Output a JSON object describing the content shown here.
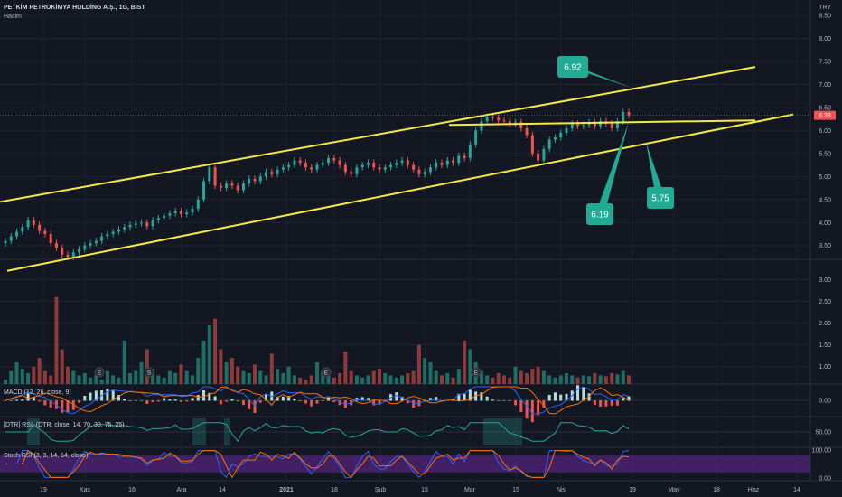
{
  "header": {
    "title": "PETKİM PETROKİMYA HOLDİNG A.Ş., 1G, BIST",
    "subtitle": "Hacim",
    "currency": "TRY"
  },
  "colors": {
    "background": "#131722",
    "up": "#26a69a",
    "down": "#ef5350",
    "channel": "#f5e942",
    "callout": "#22ab94",
    "macd_line": "#2962ff",
    "signal_line": "#ff6d00",
    "stoch_band": "#4a2370"
  },
  "indicators": {
    "macd": "MACD (12, 26, close, 9)",
    "dtr": "[DTR] RSI, (DTR, close, 14, 70, 30, 75, 25)",
    "stoch": "Stoch RSI (3, 3, 14, 14, close)"
  },
  "price_badge": "6.33",
  "volume_markers": [
    "E",
    "S",
    "E",
    "E"
  ],
  "chart_data": [
    {
      "type": "candlestick",
      "title": "PETKİM PETROKİMYA HOLDİNG A.Ş., 1G, BIST",
      "x_tick_labels": [
        "19",
        "Kas",
        "16",
        "Ara",
        "14",
        "2021",
        "18",
        "Şub",
        "15",
        "Mar",
        "15",
        "Nis",
        "19",
        "May",
        "18",
        "Haz",
        "14"
      ],
      "y_tick_labels": [
        "3.50",
        "4.00",
        "4.50",
        "5.00",
        "5.50",
        "6.00",
        "6.50",
        "7.00",
        "7.50",
        "8.00",
        "8.50"
      ],
      "ylim": [
        3.2,
        8.6
      ],
      "y_scale": "linear",
      "grid": true,
      "last_price": 6.33,
      "close": [
        3.6,
        3.7,
        3.8,
        3.9,
        4.05,
        3.95,
        3.82,
        3.75,
        3.55,
        3.45,
        3.3,
        3.25,
        3.35,
        3.42,
        3.5,
        3.55,
        3.6,
        3.7,
        3.75,
        3.8,
        3.85,
        3.9,
        3.95,
        3.98,
        4.0,
        3.92,
        4.05,
        4.1,
        4.15,
        4.2,
        4.25,
        4.18,
        4.22,
        4.3,
        4.5,
        4.9,
        5.2,
        4.8,
        4.75,
        4.85,
        4.8,
        4.7,
        4.85,
        4.95,
        4.9,
        5.0,
        5.1,
        5.05,
        5.15,
        5.2,
        5.25,
        5.35,
        5.3,
        5.2,
        5.15,
        5.25,
        5.3,
        5.4,
        5.35,
        5.25,
        5.1,
        5.05,
        5.2,
        5.25,
        5.3,
        5.2,
        5.15,
        5.2,
        5.25,
        5.3,
        5.35,
        5.25,
        5.15,
        5.05,
        5.1,
        5.2,
        5.3,
        5.25,
        5.35,
        5.3,
        5.45,
        5.4,
        5.7,
        6.0,
        6.2,
        6.3,
        6.28,
        6.22,
        6.2,
        6.15,
        6.18,
        6.05,
        5.9,
        5.5,
        5.35,
        5.6,
        5.8,
        5.85,
        5.95,
        6.05,
        6.15,
        6.1,
        6.12,
        6.18,
        6.1,
        6.2,
        6.15,
        6.05,
        6.2,
        6.4,
        6.33
      ],
      "channel_lines": [
        {
          "from": [
            "start",
            4.45
          ],
          "to": [
            "May end",
            7.38
          ]
        },
        {
          "from": [
            "start",
            2.95
          ],
          "to": [
            "Haz end",
            6.35
          ]
        },
        {
          "from": [
            "Mar",
            6.12
          ],
          "to": [
            "Haz",
            6.22
          ]
        }
      ],
      "annotations": [
        "6.92",
        "6.19",
        "5.75"
      ]
    },
    {
      "type": "bar",
      "title": "Hacim",
      "y_tick_labels": [
        "1.00",
        "1.50",
        "2.00",
        "2.50",
        "3.00"
      ],
      "ylim": [
        0.6,
        3.3
      ],
      "values": [
        0.7,
        0.9,
        1.1,
        0.95,
        0.85,
        1.0,
        1.2,
        0.9,
        0.8,
        2.6,
        1.4,
        1.0,
        0.9,
        0.8,
        0.85,
        0.75,
        0.8,
        0.7,
        0.9,
        0.8,
        0.75,
        1.6,
        0.85,
        0.9,
        1.1,
        1.4,
        0.95,
        0.8,
        0.75,
        0.9,
        0.85,
        1.05,
        0.9,
        0.8,
        1.2,
        1.6,
        1.95,
        2.1,
        1.4,
        1.1,
        1.2,
        1.0,
        0.9,
        0.85,
        1.05,
        0.9,
        0.8,
        1.3,
        0.95,
        0.85,
        1.0,
        0.8,
        0.75,
        0.7,
        0.8,
        1.1,
        0.9,
        0.8,
        0.75,
        0.85,
        1.35,
        0.9,
        0.8,
        0.75,
        0.8,
        0.9,
        0.95,
        0.85,
        0.8,
        0.75,
        0.8,
        0.85,
        0.9,
        1.5,
        1.2,
        1.1,
        0.9,
        0.8,
        0.85,
        0.75,
        0.95,
        1.6,
        1.4,
        1.1,
        0.9,
        0.8,
        0.75,
        0.85,
        0.8,
        0.75,
        1.0,
        0.9,
        0.85,
        0.95,
        1.0,
        0.9,
        0.8,
        0.75,
        0.8,
        0.85,
        0.8,
        0.75,
        0.8,
        0.78,
        0.85,
        0.8,
        0.78,
        0.85,
        0.82,
        0.9,
        0.8
      ]
    },
    {
      "type": "line",
      "title": "MACD (12, 26, close, 9)",
      "y_tick_labels": [
        "0.00"
      ],
      "ylim": [
        -0.3,
        0.3
      ]
    },
    {
      "type": "line",
      "title": "[DTR] RSI, (DTR, close, 14, 70, 30, 75, 25)",
      "y_tick_labels": [
        "50.00"
      ],
      "ylim": [
        0,
        100
      ]
    },
    {
      "type": "line",
      "title": "Stoch RSI (3, 3, 14, 14, close)",
      "y_tick_labels": [
        "100.00",
        "0.00"
      ],
      "ylim": [
        0,
        100
      ]
    }
  ]
}
